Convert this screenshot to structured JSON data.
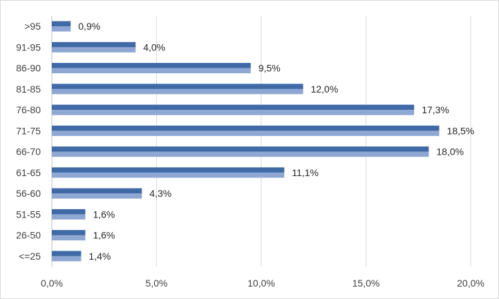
{
  "chart_data": {
    "type": "bar",
    "orientation": "horizontal",
    "categories": [
      ">95",
      "91-95",
      "86-90",
      "81-85",
      "76-80",
      "71-75",
      "66-70",
      "61-65",
      "56-60",
      "51-55",
      "26-50",
      "<=25"
    ],
    "values": [
      0.9,
      4.0,
      9.5,
      12.0,
      17.3,
      18.5,
      18.0,
      11.1,
      4.3,
      1.6,
      1.6,
      1.4
    ],
    "value_labels": [
      "0,9%",
      "4,0%",
      "9,5%",
      "12,0%",
      "17,3%",
      "18,5%",
      "18,0%",
      "11,1%",
      "4,3%",
      "1,6%",
      "1,6%",
      "1,4%"
    ],
    "x_ticks": [
      0,
      5,
      10,
      15,
      20
    ],
    "x_tick_labels": [
      "0,0%",
      "5,0%",
      "10,0%",
      "15,0%",
      "20,0%"
    ],
    "xlim": [
      0,
      20
    ],
    "grid": true,
    "legend": "none",
    "title": "",
    "xlabel": "",
    "ylabel": "",
    "colors": {
      "bar_top": "#3f6aa6",
      "bar_bottom": "#8ea7d3",
      "grid": "#d9d9d9",
      "axis": "#bfbfbf"
    }
  }
}
